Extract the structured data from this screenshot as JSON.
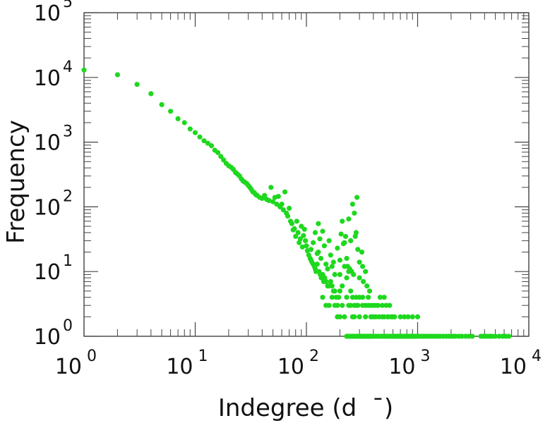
{
  "chart_data": {
    "type": "scatter",
    "xlabel": "Indegree (d  ¯)",
    "ylabel": "Frequency",
    "xscale": "log",
    "yscale": "log",
    "xlim": [
      1,
      10000
    ],
    "ylim": [
      1,
      100000
    ],
    "grid": false,
    "legend": "none",
    "x_ticks": [
      {
        "base": "10",
        "exp": "0"
      },
      {
        "base": "10",
        "exp": "1"
      },
      {
        "base": "10",
        "exp": "2"
      },
      {
        "base": "10",
        "exp": "3"
      },
      {
        "base": "10",
        "exp": "4"
      }
    ],
    "y_ticks": [
      {
        "base": "10",
        "exp": "0"
      },
      {
        "base": "10",
        "exp": "1"
      },
      {
        "base": "10",
        "exp": "2"
      },
      {
        "base": "10",
        "exp": "3"
      },
      {
        "base": "10",
        "exp": "4"
      },
      {
        "base": "10",
        "exp": "5"
      }
    ],
    "series": [
      {
        "color": "#1ed81e",
        "points": [
          [
            1,
            13000
          ],
          [
            2,
            11000
          ],
          [
            3,
            7800
          ],
          [
            4,
            5600
          ],
          [
            5,
            3800
          ],
          [
            6,
            3000
          ],
          [
            7,
            2300
          ],
          [
            8,
            2000
          ],
          [
            9,
            1600
          ],
          [
            10,
            1400
          ],
          [
            11,
            1200
          ],
          [
            12,
            1050
          ],
          [
            13,
            960
          ],
          [
            14,
            880
          ],
          [
            15,
            750
          ],
          [
            16,
            690
          ],
          [
            17,
            600
          ],
          [
            18,
            530
          ],
          [
            19,
            470
          ],
          [
            20,
            430
          ],
          [
            21,
            410
          ],
          [
            22,
            380
          ],
          [
            23,
            340
          ],
          [
            24,
            320
          ],
          [
            25,
            300
          ],
          [
            26,
            270
          ],
          [
            27,
            250
          ],
          [
            28,
            240
          ],
          [
            29,
            230
          ],
          [
            30,
            215
          ],
          [
            31,
            200
          ],
          [
            32,
            185
          ],
          [
            33,
            170
          ],
          [
            34,
            165
          ],
          [
            35,
            155
          ],
          [
            36,
            150
          ],
          [
            38,
            140
          ],
          [
            40,
            135
          ],
          [
            42,
            150
          ],
          [
            44,
            130
          ],
          [
            46,
            125
          ],
          [
            48,
            200
          ],
          [
            50,
            120
          ],
          [
            52,
            140
          ],
          [
            54,
            110
          ],
          [
            56,
            145
          ],
          [
            58,
            100
          ],
          [
            60,
            110
          ],
          [
            62,
            90
          ],
          [
            64,
            170
          ],
          [
            66,
            80
          ],
          [
            68,
            72
          ],
          [
            70,
            95
          ],
          [
            72,
            60
          ],
          [
            74,
            55
          ],
          [
            76,
            44
          ],
          [
            78,
            46
          ],
          [
            80,
            35
          ],
          [
            82,
            60
          ],
          [
            84,
            40
          ],
          [
            86,
            28
          ],
          [
            88,
            32
          ],
          [
            90,
            50
          ],
          [
            92,
            24
          ],
          [
            94,
            36
          ],
          [
            96,
            45
          ],
          [
            98,
            30
          ],
          [
            100,
            25
          ],
          [
            102,
            21
          ],
          [
            105,
            18
          ],
          [
            108,
            16
          ],
          [
            110,
            15
          ],
          [
            112,
            14
          ],
          [
            115,
            13
          ],
          [
            118,
            12
          ],
          [
            120,
            11
          ],
          [
            122,
            10
          ],
          [
            125,
            13
          ],
          [
            128,
            20
          ],
          [
            130,
            10
          ],
          [
            133,
            9
          ],
          [
            136,
            8
          ],
          [
            140,
            9
          ],
          [
            143,
            7
          ],
          [
            146,
            8
          ],
          [
            150,
            7
          ],
          [
            155,
            6
          ],
          [
            160,
            6
          ],
          [
            165,
            7
          ],
          [
            170,
            6
          ],
          [
            175,
            5
          ],
          [
            180,
            5
          ],
          [
            185,
            4
          ],
          [
            190,
            3
          ],
          [
            195,
            4
          ],
          [
            200,
            5
          ],
          [
            210,
            6
          ],
          [
            220,
            12
          ],
          [
            230,
            8
          ],
          [
            240,
            10
          ],
          [
            250,
            5
          ],
          [
            260,
            4
          ],
          [
            270,
            3
          ],
          [
            280,
            4
          ],
          [
            290,
            3
          ],
          [
            300,
            2
          ],
          [
            320,
            3
          ],
          [
            340,
            2
          ],
          [
            360,
            3
          ],
          [
            380,
            2
          ],
          [
            400,
            2
          ],
          [
            420,
            3
          ],
          [
            450,
            2
          ],
          [
            480,
            2
          ],
          [
            500,
            2
          ],
          [
            540,
            2
          ],
          [
            580,
            2
          ],
          [
            620,
            2
          ],
          [
            700,
            2
          ],
          [
            760,
            2
          ],
          [
            820,
            2
          ],
          [
            900,
            2
          ],
          [
            1000,
            2
          ],
          [
            110,
            22
          ],
          [
            115,
            28
          ],
          [
            120,
            40
          ],
          [
            125,
            19
          ],
          [
            128,
            55
          ],
          [
            132,
            32
          ],
          [
            135,
            16
          ],
          [
            140,
            42
          ],
          [
            145,
            25
          ],
          [
            150,
            13
          ],
          [
            155,
            11
          ],
          [
            160,
            30
          ],
          [
            165,
            18
          ],
          [
            170,
            12
          ],
          [
            175,
            14
          ],
          [
            180,
            9
          ],
          [
            190,
            23
          ],
          [
            200,
            15
          ],
          [
            210,
            60
          ],
          [
            220,
            28
          ],
          [
            230,
            16
          ],
          [
            240,
            65
          ],
          [
            250,
            30
          ],
          [
            260,
            110
          ],
          [
            270,
            80
          ],
          [
            280,
            40
          ],
          [
            290,
            22
          ],
          [
            300,
            14
          ],
          [
            320,
            12
          ],
          [
            340,
            10
          ],
          [
            200,
            9
          ],
          [
            205,
            38
          ],
          [
            215,
            27
          ],
          [
            225,
            35
          ],
          [
            235,
            12
          ],
          [
            245,
            11
          ],
          [
            255,
            10
          ],
          [
            265,
            9
          ],
          [
            275,
            35
          ],
          [
            285,
            140
          ],
          [
            300,
            8
          ],
          [
            315,
            20
          ],
          [
            325,
            7
          ],
          [
            350,
            6
          ],
          [
            370,
            5
          ],
          [
            140,
            4
          ],
          [
            150,
            3
          ],
          [
            160,
            3
          ],
          [
            170,
            4
          ],
          [
            180,
            3
          ],
          [
            190,
            2
          ],
          [
            200,
            2
          ],
          [
            210,
            3
          ],
          [
            220,
            2
          ],
          [
            230,
            4
          ],
          [
            240,
            3
          ],
          [
            250,
            3
          ],
          [
            260,
            2
          ],
          [
            270,
            2
          ],
          [
            280,
            3
          ],
          [
            300,
            4
          ],
          [
            320,
            4
          ],
          [
            340,
            3
          ],
          [
            360,
            4
          ],
          [
            380,
            3
          ],
          [
            400,
            3
          ],
          [
            420,
            2
          ],
          [
            440,
            3
          ],
          [
            460,
            4
          ],
          [
            480,
            3
          ],
          [
            500,
            4
          ],
          [
            520,
            3
          ],
          [
            540,
            2
          ],
          [
            560,
            3
          ],
          [
            600,
            2
          ],
          [
            230,
            1
          ],
          [
            240,
            1
          ],
          [
            250,
            1
          ],
          [
            260,
            1
          ],
          [
            270,
            1
          ],
          [
            280,
            1
          ],
          [
            290,
            1
          ],
          [
            300,
            1
          ],
          [
            310,
            1
          ],
          [
            320,
            1
          ],
          [
            330,
            1
          ],
          [
            340,
            1
          ],
          [
            350,
            1
          ],
          [
            360,
            1
          ],
          [
            370,
            1
          ],
          [
            380,
            1
          ],
          [
            390,
            1
          ],
          [
            400,
            1
          ],
          [
            420,
            1
          ],
          [
            440,
            1
          ],
          [
            460,
            1
          ],
          [
            480,
            1
          ],
          [
            500,
            1
          ],
          [
            520,
            1
          ],
          [
            540,
            1
          ],
          [
            560,
            1
          ],
          [
            580,
            1
          ],
          [
            600,
            1
          ],
          [
            620,
            1
          ],
          [
            640,
            1
          ],
          [
            660,
            1
          ],
          [
            680,
            1
          ],
          [
            700,
            1
          ],
          [
            720,
            1
          ],
          [
            740,
            1
          ],
          [
            760,
            1
          ],
          [
            780,
            1
          ],
          [
            800,
            1
          ],
          [
            820,
            1
          ],
          [
            840,
            1
          ],
          [
            860,
            1
          ],
          [
            880,
            1
          ],
          [
            900,
            1
          ],
          [
            930,
            1
          ],
          [
            960,
            1
          ],
          [
            990,
            1
          ],
          [
            1030,
            1
          ],
          [
            1080,
            1
          ],
          [
            1130,
            1
          ],
          [
            1180,
            1
          ],
          [
            1240,
            1
          ],
          [
            1300,
            1
          ],
          [
            1370,
            1
          ],
          [
            1440,
            1
          ],
          [
            1520,
            1
          ],
          [
            1600,
            1
          ],
          [
            1700,
            1
          ],
          [
            1800,
            1
          ],
          [
            1900,
            1
          ],
          [
            2000,
            1
          ],
          [
            2100,
            1
          ],
          [
            2200,
            1
          ],
          [
            2350,
            1
          ],
          [
            2500,
            1
          ],
          [
            2700,
            1
          ],
          [
            2900,
            1
          ],
          [
            3100,
            1
          ],
          [
            3700,
            1
          ],
          [
            3900,
            1
          ],
          [
            4100,
            1
          ],
          [
            4300,
            1
          ],
          [
            4500,
            1
          ],
          [
            4700,
            1
          ],
          [
            5000,
            1
          ],
          [
            5400,
            1
          ],
          [
            5800,
            1
          ],
          [
            6200,
            1
          ],
          [
            6600,
            1
          ]
        ]
      }
    ]
  }
}
